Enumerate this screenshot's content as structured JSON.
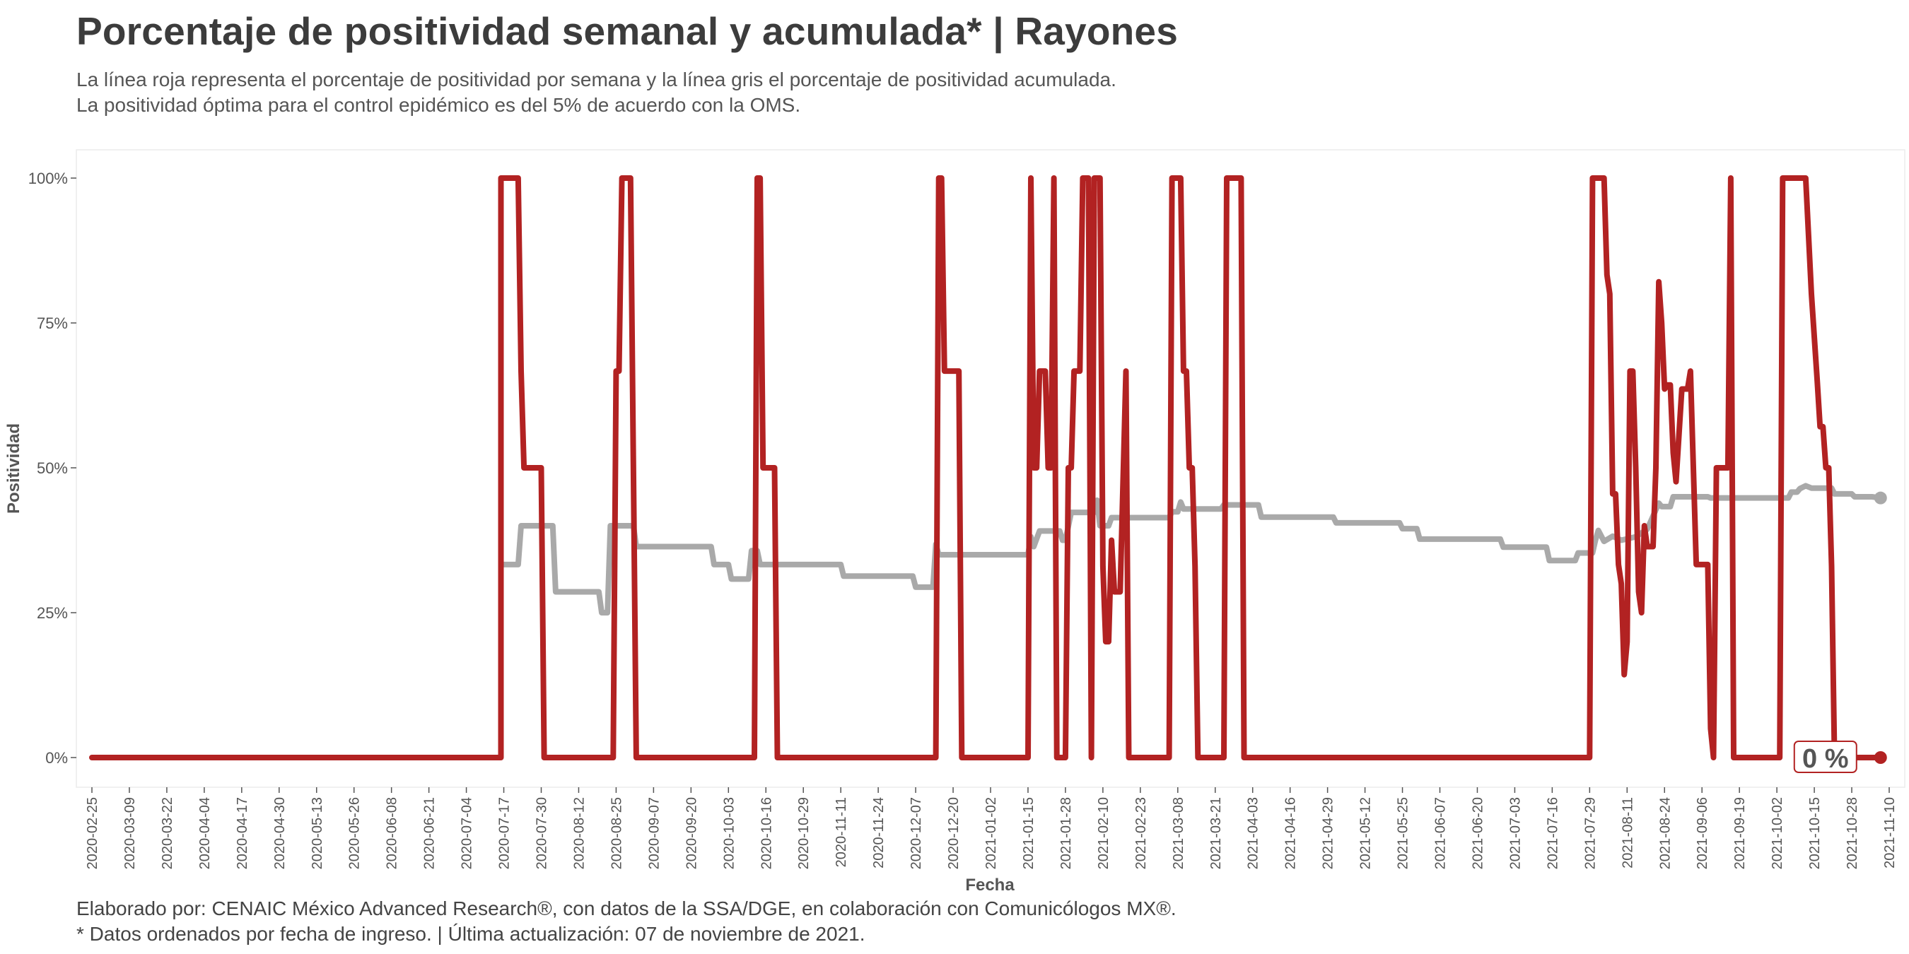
{
  "title": "Porcentaje de positividad semanal y acumulada* | Rayones",
  "subtitle_lines": [
    "La línea roja representa el porcentaje de positividad por semana y la línea gris el porcentaje de positividad acumulada.",
    "La positividad óptima para el control epidémico es del 5% de acuerdo con la OMS."
  ],
  "caption_lines": [
    "Elaborado por: CENAIC México Advanced Research®, con datos de la SSA/DGE, en colaboración con Comunicólogos MX®.",
    "* Datos ordenados por fecha de ingreso. | Última actualización: 07 de noviembre de 2021."
  ],
  "colors": {
    "weekly": "#b22222",
    "cumulative": "#a9a9a9",
    "text": "#404040"
  },
  "chart_data": {
    "type": "line",
    "xlabel": "Fecha",
    "ylabel": "Positividad",
    "x_range": [
      "2020-02-25",
      "2021-11-10"
    ],
    "ylim": [
      0,
      100
    ],
    "y_ticks": [
      0,
      25,
      50,
      75,
      100
    ],
    "y_tick_labels": [
      "0%",
      "25%",
      "50%",
      "75%",
      "100%"
    ],
    "x_tick_labels": [
      "2020-02-25",
      "2020-03-09",
      "2020-03-22",
      "2020-04-04",
      "2020-04-17",
      "2020-04-30",
      "2020-05-13",
      "2020-05-26",
      "2020-06-08",
      "2020-06-21",
      "2020-07-04",
      "2020-07-17",
      "2020-07-30",
      "2020-08-12",
      "2020-08-25",
      "2020-09-07",
      "2020-09-20",
      "2020-10-03",
      "2020-10-16",
      "2020-10-29",
      "2020-11-11",
      "2020-11-24",
      "2020-12-07",
      "2020-12-20",
      "2021-01-02",
      "2021-01-15",
      "2021-01-28",
      "2021-02-10",
      "2021-02-23",
      "2021-03-08",
      "2021-03-21",
      "2021-04-03",
      "2021-04-16",
      "2021-04-29",
      "2021-05-12",
      "2021-05-25",
      "2021-06-07",
      "2021-06-20",
      "2021-07-03",
      "2021-07-16",
      "2021-07-29",
      "2021-08-11",
      "2021-08-24",
      "2021-09-06",
      "2021-09-19",
      "2021-10-02",
      "2021-10-15",
      "2021-10-28",
      "2021-11-10"
    ],
    "end_label": "0 %",
    "series": [
      {
        "key": "weekly",
        "points": [
          [
            "2020-02-25",
            0
          ],
          [
            "2020-07-16",
            0
          ],
          [
            "2020-07-16",
            100
          ],
          [
            "2020-07-22",
            100
          ],
          [
            "2020-07-23",
            66.7
          ],
          [
            "2020-07-24",
            50
          ],
          [
            "2020-07-30",
            50
          ],
          [
            "2020-07-31",
            0
          ],
          [
            "2020-08-24",
            0
          ],
          [
            "2020-08-25",
            66.7
          ],
          [
            "2020-08-26",
            66.7
          ],
          [
            "2020-08-27",
            100
          ],
          [
            "2020-08-30",
            100
          ],
          [
            "2020-09-01",
            0
          ],
          [
            "2020-10-12",
            0
          ],
          [
            "2020-10-13",
            100
          ],
          [
            "2020-10-14",
            100
          ],
          [
            "2020-10-15",
            50
          ],
          [
            "2020-10-19",
            50
          ],
          [
            "2020-10-20",
            0
          ],
          [
            "2020-12-14",
            0
          ],
          [
            "2020-12-15",
            100
          ],
          [
            "2020-12-16",
            100
          ],
          [
            "2020-12-17",
            66.7
          ],
          [
            "2020-12-22",
            66.7
          ],
          [
            "2020-12-23",
            0
          ],
          [
            "2021-01-15",
            0
          ],
          [
            "2021-01-16",
            100
          ],
          [
            "2021-01-17",
            50
          ],
          [
            "2021-01-18",
            50
          ],
          [
            "2021-01-19",
            66.7
          ],
          [
            "2021-01-21",
            66.7
          ],
          [
            "2021-01-22",
            50
          ],
          [
            "2021-01-23",
            50
          ],
          [
            "2021-01-24",
            100
          ],
          [
            "2021-01-25",
            0
          ],
          [
            "2021-01-28",
            0
          ],
          [
            "2021-01-29",
            50
          ],
          [
            "2021-01-30",
            50
          ],
          [
            "2021-01-31",
            66.7
          ],
          [
            "2021-02-02",
            66.7
          ],
          [
            "2021-02-03",
            100
          ],
          [
            "2021-02-05",
            100
          ],
          [
            "2021-02-06",
            0
          ],
          [
            "2021-02-07",
            100
          ],
          [
            "2021-02-09",
            100
          ],
          [
            "2021-02-10",
            33
          ],
          [
            "2021-02-11",
            20
          ],
          [
            "2021-02-12",
            20
          ],
          [
            "2021-02-13",
            37.5
          ],
          [
            "2021-02-14",
            28.6
          ],
          [
            "2021-02-16",
            28.6
          ],
          [
            "2021-02-18",
            66.7
          ],
          [
            "2021-02-19",
            0
          ],
          [
            "2021-03-05",
            0
          ],
          [
            "2021-03-06",
            100
          ],
          [
            "2021-03-09",
            100
          ],
          [
            "2021-03-10",
            66.7
          ],
          [
            "2021-03-11",
            66.7
          ],
          [
            "2021-03-12",
            50
          ],
          [
            "2021-03-13",
            50
          ],
          [
            "2021-03-14",
            33
          ],
          [
            "2021-03-15",
            0
          ],
          [
            "2021-03-24",
            0
          ],
          [
            "2021-03-25",
            100
          ],
          [
            "2021-03-30",
            100
          ],
          [
            "2021-03-31",
            0
          ],
          [
            "2021-07-29",
            0
          ],
          [
            "2021-07-30",
            100
          ],
          [
            "2021-08-03",
            100
          ],
          [
            "2021-08-04",
            83.3
          ],
          [
            "2021-08-05",
            80
          ],
          [
            "2021-08-06",
            45.5
          ],
          [
            "2021-08-07",
            45.5
          ],
          [
            "2021-08-08",
            33.3
          ],
          [
            "2021-08-09",
            30
          ],
          [
            "2021-08-10",
            14.3
          ],
          [
            "2021-08-11",
            20
          ],
          [
            "2021-08-12",
            66.7
          ],
          [
            "2021-08-13",
            66.7
          ],
          [
            "2021-08-14",
            50
          ],
          [
            "2021-08-15",
            28.6
          ],
          [
            "2021-08-16",
            25
          ],
          [
            "2021-08-17",
            40
          ],
          [
            "2021-08-18",
            36.4
          ],
          [
            "2021-08-20",
            36.4
          ],
          [
            "2021-08-21",
            50
          ],
          [
            "2021-08-22",
            82.1
          ],
          [
            "2021-08-23",
            75
          ],
          [
            "2021-08-24",
            63.6
          ],
          [
            "2021-08-25",
            64.3
          ],
          [
            "2021-08-26",
            64.3
          ],
          [
            "2021-08-27",
            52.6
          ],
          [
            "2021-08-28",
            47.6
          ],
          [
            "2021-08-30",
            63.6
          ],
          [
            "2021-09-01",
            63.6
          ],
          [
            "2021-09-02",
            66.7
          ],
          [
            "2021-09-04",
            33.3
          ],
          [
            "2021-09-08",
            33.3
          ],
          [
            "2021-09-09",
            5
          ],
          [
            "2021-09-10",
            0
          ],
          [
            "2021-09-11",
            50
          ],
          [
            "2021-09-15",
            50
          ],
          [
            "2021-09-16",
            100
          ],
          [
            "2021-09-17",
            0
          ],
          [
            "2021-10-03",
            0
          ],
          [
            "2021-10-04",
            100
          ],
          [
            "2021-10-12",
            100
          ],
          [
            "2021-10-14",
            80
          ],
          [
            "2021-10-16",
            65
          ],
          [
            "2021-10-17",
            57.1
          ],
          [
            "2021-10-18",
            57.1
          ],
          [
            "2021-10-19",
            50
          ],
          [
            "2021-10-20",
            50
          ],
          [
            "2021-10-21",
            33
          ],
          [
            "2021-10-22",
            0
          ],
          [
            "2021-11-07",
            0
          ]
        ]
      },
      {
        "key": "cumulative",
        "points": [
          [
            "2020-07-16",
            33.3
          ],
          [
            "2020-07-22",
            33.3
          ],
          [
            "2020-07-23",
            40
          ],
          [
            "2020-08-03",
            40
          ],
          [
            "2020-08-04",
            28.6
          ],
          [
            "2020-08-19",
            28.6
          ],
          [
            "2020-08-20",
            25
          ],
          [
            "2020-08-22",
            25
          ],
          [
            "2020-08-23",
            40
          ],
          [
            "2020-08-31",
            40
          ],
          [
            "2020-09-01",
            36.4
          ],
          [
            "2020-09-27",
            36.4
          ],
          [
            "2020-09-28",
            33.3
          ],
          [
            "2020-10-03",
            33.3
          ],
          [
            "2020-10-04",
            30.8
          ],
          [
            "2020-10-10",
            30.8
          ],
          [
            "2020-10-11",
            35.7
          ],
          [
            "2020-10-13",
            35.7
          ],
          [
            "2020-10-14",
            33.3
          ],
          [
            "2020-11-11",
            33.3
          ],
          [
            "2020-11-12",
            31.3
          ],
          [
            "2020-12-06",
            31.3
          ],
          [
            "2020-12-07",
            29.4
          ],
          [
            "2020-12-13",
            29.4
          ],
          [
            "2020-12-14",
            36.8
          ],
          [
            "2020-12-15",
            35
          ],
          [
            "2021-01-15",
            35
          ],
          [
            "2021-01-16",
            38.1
          ],
          [
            "2021-01-17",
            36.4
          ],
          [
            "2021-01-19",
            39.1
          ],
          [
            "2021-01-26",
            39.1
          ],
          [
            "2021-01-27",
            37.5
          ],
          [
            "2021-01-28",
            37.5
          ],
          [
            "2021-01-30",
            42.3
          ],
          [
            "2021-02-07",
            42.3
          ],
          [
            "2021-02-08",
            44.4
          ],
          [
            "2021-02-09",
            40
          ],
          [
            "2021-02-12",
            40
          ],
          [
            "2021-02-13",
            41.4
          ],
          [
            "2021-03-05",
            41.4
          ],
          [
            "2021-03-06",
            42.4
          ],
          [
            "2021-03-08",
            42.4
          ],
          [
            "2021-03-09",
            44.1
          ],
          [
            "2021-03-10",
            42.9
          ],
          [
            "2021-03-23",
            42.9
          ],
          [
            "2021-03-24",
            43.6
          ],
          [
            "2021-04-05",
            43.6
          ],
          [
            "2021-04-06",
            41.5
          ],
          [
            "2021-05-01",
            41.5
          ],
          [
            "2021-05-02",
            40.5
          ],
          [
            "2021-05-24",
            40.5
          ],
          [
            "2021-05-25",
            39.5
          ],
          [
            "2021-05-30",
            39.5
          ],
          [
            "2021-05-31",
            37.7
          ],
          [
            "2021-06-28",
            37.7
          ],
          [
            "2021-06-29",
            36.3
          ],
          [
            "2021-07-14",
            36.3
          ],
          [
            "2021-07-15",
            34
          ],
          [
            "2021-07-24",
            34
          ],
          [
            "2021-07-25",
            35.3
          ],
          [
            "2021-07-30",
            35.3
          ],
          [
            "2021-07-31",
            37.5
          ],
          [
            "2021-08-01",
            39.2
          ],
          [
            "2021-08-03",
            37.3
          ],
          [
            "2021-08-06",
            38.2
          ],
          [
            "2021-08-09",
            37.5
          ],
          [
            "2021-08-14",
            38.1
          ],
          [
            "2021-08-18",
            39.4
          ],
          [
            "2021-08-22",
            43.9
          ],
          [
            "2021-08-23",
            43.3
          ],
          [
            "2021-08-26",
            43.3
          ],
          [
            "2021-08-27",
            45
          ],
          [
            "2021-09-08",
            45
          ],
          [
            "2021-09-09",
            44.8
          ],
          [
            "2021-10-06",
            44.8
          ],
          [
            "2021-10-07",
            45.8
          ],
          [
            "2021-10-09",
            45.8
          ],
          [
            "2021-10-10",
            46.4
          ],
          [
            "2021-10-12",
            46.9
          ],
          [
            "2021-10-14",
            46.5
          ],
          [
            "2021-10-21",
            46.5
          ],
          [
            "2021-10-22",
            45.5
          ],
          [
            "2021-10-28",
            45.5
          ],
          [
            "2021-10-29",
            45
          ],
          [
            "2021-11-04",
            45
          ],
          [
            "2021-11-07",
            44.8
          ]
        ]
      }
    ]
  }
}
